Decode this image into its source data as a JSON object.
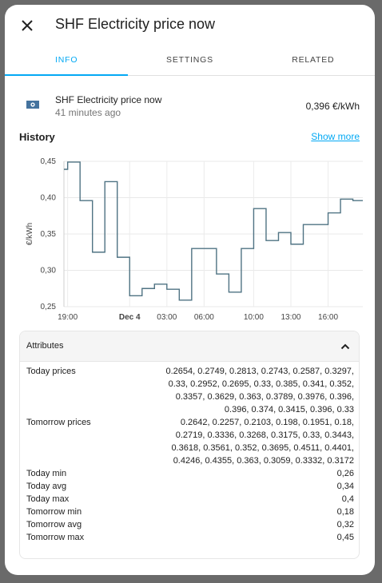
{
  "dialog": {
    "title": "SHF Electricity price now"
  },
  "tabs": [
    {
      "label": "INFO",
      "active": true
    },
    {
      "label": "SETTINGS",
      "active": false
    },
    {
      "label": "RELATED",
      "active": false
    }
  ],
  "entity": {
    "icon": "cash-icon",
    "name": "SHF Electricity price now",
    "last_changed": "41 minutes ago",
    "state": "0,396 €/kWh"
  },
  "history": {
    "title": "History",
    "show_more": "Show more"
  },
  "chart_data": {
    "type": "line",
    "ylabel": "€/kWh",
    "ylim": [
      0.25,
      0.45
    ],
    "y_ticks": [
      "0,45",
      "0,40",
      "0,35",
      "0,30",
      "0,25"
    ],
    "x_ticks": [
      "19:00",
      "Dec 4",
      "03:00",
      "06:00",
      "10:00",
      "13:00",
      "16:00"
    ],
    "x_start_hour": 18.7,
    "x_end_hour": 42.8,
    "x_tick_hours": [
      19,
      24,
      27,
      30,
      34,
      37,
      40
    ],
    "series": [
      {
        "color": "#4f7383",
        "step_hours": [
          18.7,
          19,
          20,
          21,
          22,
          23,
          24,
          25,
          26,
          27,
          28,
          29,
          30,
          31,
          32,
          33,
          34,
          35,
          36,
          37,
          38,
          39,
          40,
          41,
          42
        ],
        "values": [
          0.439,
          0.449,
          0.396,
          0.325,
          0.422,
          0.318,
          0.265,
          0.275,
          0.281,
          0.274,
          0.259,
          0.33,
          0.33,
          0.295,
          0.27,
          0.33,
          0.385,
          0.341,
          0.352,
          0.336,
          0.363,
          0.363,
          0.379,
          0.398,
          0.396
        ]
      }
    ]
  },
  "attributes": {
    "title": "Attributes",
    "rows": [
      {
        "key": "Today prices",
        "value": "0.2654, 0.2749, 0.2813, 0.2743, 0.2587, 0.3297, 0.33, 0.2952, 0.2695, 0.33, 0.385, 0.341, 0.352, 0.3357, 0.3629, 0.363, 0.3789, 0.3976, 0.396, 0.396, 0.374, 0.3415, 0.396, 0.33"
      },
      {
        "key": "Tomorrow prices",
        "value": "0.2642, 0.2257, 0.2103, 0.198, 0.1951, 0.18, 0.2719, 0.3336, 0.3268, 0.3175, 0.33, 0.3443, 0.3618, 0.3561, 0.352, 0.3695, 0.4511, 0.4401, 0.4246, 0.4355, 0.363, 0.3059, 0.3332, 0.3172"
      },
      {
        "key": "Today min",
        "value": "0,26"
      },
      {
        "key": "Today avg",
        "value": "0,34"
      },
      {
        "key": "Today max",
        "value": "0,4"
      },
      {
        "key": "Tomorrow min",
        "value": "0,18"
      },
      {
        "key": "Tomorrow avg",
        "value": "0,32"
      },
      {
        "key": "Tomorrow max",
        "value": "0,45"
      }
    ]
  }
}
